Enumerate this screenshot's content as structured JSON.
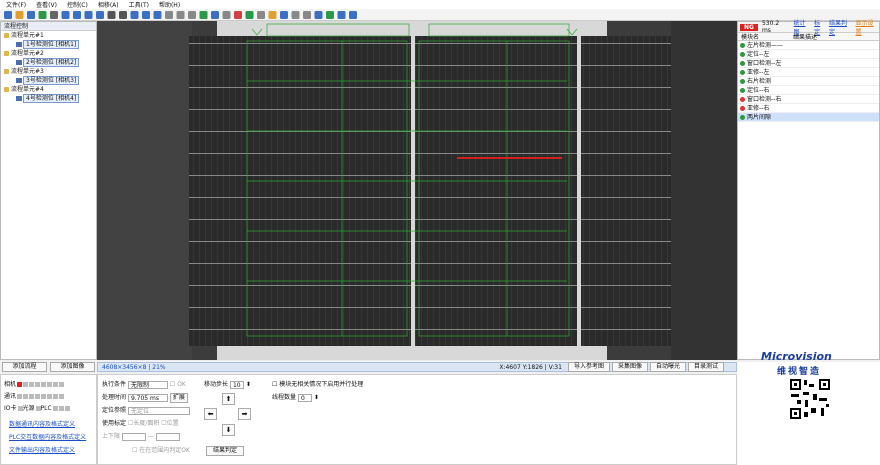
{
  "menu": [
    "文件(F)",
    "查看(V)",
    "控制(C)",
    "相移(A)",
    "工具(T)",
    "帮助(H)"
  ],
  "process_panel": {
    "title": "流程控制",
    "tree": [
      {
        "label": "流程单元#1",
        "child": "1号检测位 [相机1]"
      },
      {
        "label": "流程单元#2",
        "child": "2号检测位 [相机2]"
      },
      {
        "label": "流程单元#3",
        "child": "3号检测位 [相机3]"
      },
      {
        "label": "流程单元#4",
        "child": "4号检测位 [相机4]"
      }
    ],
    "buttons": [
      "添加流程",
      "添加图像"
    ]
  },
  "image_status": {
    "info": "4608×3456×8 | 21%",
    "coords": "X:4607 Y:1826 | V:31",
    "buttons": [
      "导入参考图",
      "采集图像",
      "自动曝光",
      "目录测试"
    ]
  },
  "result_panel": {
    "status": "NG",
    "time": "530.2 ms",
    "links": [
      "统计图",
      "标定",
      "结果判定",
      "显示设置"
    ],
    "columns": [
      "模块名",
      "结果描述"
    ],
    "rows": [
      {
        "name": "左片检测——",
        "state": "ok"
      },
      {
        "name": "定位--左",
        "state": "ok"
      },
      {
        "name": "窗口检测--左",
        "state": "ok"
      },
      {
        "name": "亚修--左",
        "state": "ok"
      },
      {
        "name": "右片检测",
        "state": "ok"
      },
      {
        "name": "定位--右",
        "state": "ok"
      },
      {
        "name": "窗口检测--右",
        "state": "ng"
      },
      {
        "name": "亚修--右",
        "state": "ng"
      },
      {
        "name": "两片间隙",
        "state": "ok",
        "selected": true
      }
    ]
  },
  "logo": {
    "brand": "Microvision",
    "name": "维视智造"
  },
  "io_panel": {
    "labels": [
      "相机",
      "通讯",
      "IO卡",
      "光源",
      "PLC"
    ],
    "links": [
      "数据通讯内容及格式定义",
      "PLC交互数据内容及格式定义",
      "文件输出内容及格式定义"
    ]
  },
  "settings": {
    "exec_label": "执行条件",
    "exec_value": "无限制",
    "ok": "OK",
    "time_label": "处理时间",
    "time_value": "9.705 ms",
    "expand": "扩展",
    "pos_label": "定位参照",
    "pos_value": "无定位",
    "calib_label": "使用标定",
    "calib_opt1": "长度/面积",
    "calib_opt2": "位置",
    "limit_label": "上下限",
    "limit_sep": "—",
    "range_ok": "在在范围内判定OK",
    "step_label": "移动步长",
    "step_value": "10",
    "parallel": "模块无相关情况下启用并行处理",
    "threads_label": "线程数量",
    "threads_value": "0",
    "judge": "结果判定"
  }
}
